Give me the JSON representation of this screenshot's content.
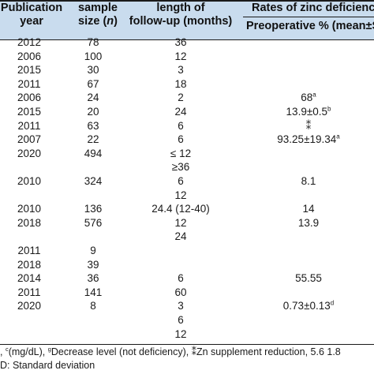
{
  "header": {
    "col_publication": [
      "Publication",
      "year"
    ],
    "col_sample": [
      "sample",
      "size (",
      "n",
      ")"
    ],
    "col_followup": [
      "length of",
      "follow-up (months)"
    ],
    "col_rates": "Rates of zinc deficiency",
    "col_preop": "Preoperative % (mean±S"
  },
  "rows": [
    {
      "year": "2012",
      "n": "78",
      "f": "36",
      "p": ""
    },
    {
      "year": "2006",
      "n": "100",
      "f": "12",
      "p": ""
    },
    {
      "year": "2015",
      "n": "30",
      "f": "3",
      "p": ""
    },
    {
      "year": "2011",
      "n": "67",
      "f": "18",
      "p": ""
    },
    {
      "year": "2006",
      "n": "24",
      "f": "2",
      "p": "68",
      "sup": "a"
    },
    {
      "year": "2015",
      "n": "20",
      "f": "24",
      "p": "13.9±0.5",
      "sup": "b"
    },
    {
      "year": "2011",
      "n": "63",
      "f": "6",
      "p": "⁑"
    },
    {
      "year": "2007",
      "n": "22",
      "f": "6",
      "p": "93.25±19.34",
      "sup": "a"
    },
    {
      "year": "2020",
      "n": "494",
      "f": "≤ 12",
      "p": ""
    },
    {
      "year": "",
      "n": "",
      "f": "≥36",
      "p": ""
    },
    {
      "year": "2010",
      "n": "324",
      "f": "6",
      "p": "8.1"
    },
    {
      "year": "",
      "n": "",
      "f": "12",
      "p": ""
    },
    {
      "year": "2010",
      "n": "136",
      "f": "24.4 (12-40)",
      "p": "14"
    },
    {
      "year": "2018",
      "n": "576",
      "f": "12",
      "p": "13.9"
    },
    {
      "year": "",
      "n": "",
      "f": "24",
      "p": ""
    },
    {
      "year": "2011",
      "n": "9",
      "f": "",
      "p": ""
    },
    {
      "year": "2018",
      "n": "39",
      "f": "",
      "p": ""
    },
    {
      "year": "2014",
      "n": "36",
      "f": "6",
      "p": "55.55"
    },
    {
      "year": "2011",
      "n": "141",
      "f": "60",
      "p": ""
    },
    {
      "year": "2020",
      "n": "8",
      "f": "3",
      "p": "0.73±0.13",
      "sup": "d"
    },
    {
      "year": "",
      "n": "",
      "f": "6",
      "p": ""
    },
    {
      "year": "",
      "n": "",
      "f": "12",
      "p": ""
    }
  ],
  "footnote": {
    "line1_a": ", ",
    "line1_sup_c": "c",
    "line1_b": "(mg/dL), ",
    "line1_sup_g": "g",
    "line1_c": "Decrease level (not deficiency), ⁑Zn supplement reduction, 5.6 1.8",
    "line2": "D: Standard deviation"
  }
}
